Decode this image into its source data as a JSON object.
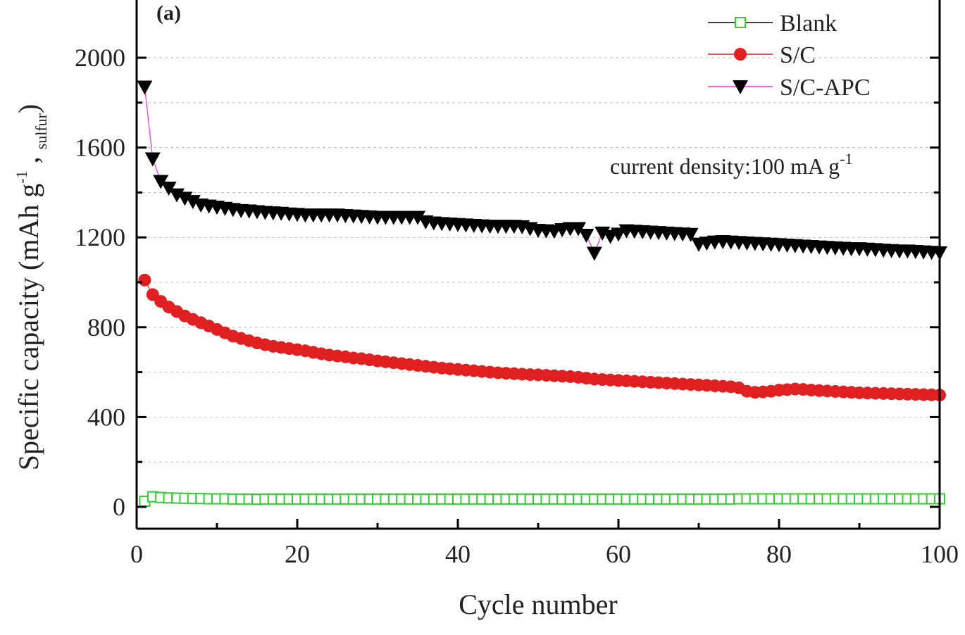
{
  "chart_data": {
    "type": "scatter",
    "panel_label": "(a)",
    "xlabel": "Cycle number",
    "ylabel": {
      "main": "Specific capacity (mAh g",
      "exp": "-1",
      "comma": " , ",
      "sub": "sulfur",
      "close": ")"
    },
    "annotation": {
      "main": "current density:100 mA g",
      "exp": "-1"
    },
    "xlim": [
      0,
      100
    ],
    "ylim": [
      -100,
      2200
    ],
    "xticks": [
      0,
      20,
      40,
      60,
      80,
      100
    ],
    "yticks": [
      0,
      400,
      800,
      1200,
      1600,
      2000
    ],
    "grid": true,
    "legend_position": "top-right",
    "x": [
      1,
      2,
      3,
      4,
      5,
      6,
      7,
      8,
      9,
      10,
      11,
      12,
      13,
      14,
      15,
      16,
      17,
      18,
      19,
      20,
      21,
      22,
      23,
      24,
      25,
      26,
      27,
      28,
      29,
      30,
      31,
      32,
      33,
      34,
      35,
      36,
      37,
      38,
      39,
      40,
      41,
      42,
      43,
      44,
      45,
      46,
      47,
      48,
      49,
      50,
      51,
      52,
      53,
      54,
      55,
      56,
      57,
      58,
      59,
      60,
      61,
      62,
      63,
      64,
      65,
      66,
      67,
      68,
      69,
      70,
      71,
      72,
      73,
      74,
      75,
      76,
      77,
      78,
      79,
      80,
      81,
      82,
      83,
      84,
      85,
      86,
      87,
      88,
      89,
      90,
      91,
      92,
      93,
      94,
      95,
      96,
      97,
      98,
      99,
      100
    ],
    "series": [
      {
        "name": "Blank",
        "color": "#33cc33",
        "line_color": "#000000",
        "marker": "open-square",
        "values": [
          25,
          45,
          42,
          40,
          39,
          38,
          37,
          37,
          36,
          36,
          36,
          35,
          35,
          35,
          34,
          35,
          35,
          35,
          35,
          35,
          35,
          35,
          35,
          35,
          35,
          35,
          35,
          35,
          35,
          35,
          35,
          35,
          35,
          35,
          35,
          35,
          35,
          35,
          35,
          35,
          35,
          35,
          35,
          35,
          35,
          35,
          35,
          35,
          35,
          35,
          35,
          35,
          35,
          35,
          35,
          35,
          35,
          35,
          35,
          35,
          35,
          35,
          35,
          35,
          35,
          35,
          35,
          35,
          35,
          35,
          35,
          35,
          35,
          35,
          36,
          36,
          36,
          36,
          36,
          36,
          36,
          36,
          36,
          36,
          36,
          36,
          36,
          36,
          36,
          36,
          36,
          36,
          36,
          36,
          36,
          36,
          36,
          36,
          36,
          36
        ]
      },
      {
        "name": "S/C",
        "color": "#e02020",
        "line_color": "#e02020",
        "marker": "filled-circle",
        "values": [
          1010,
          945,
          915,
          890,
          870,
          850,
          835,
          820,
          805,
          790,
          775,
          760,
          750,
          740,
          730,
          722,
          715,
          710,
          705,
          700,
          695,
          688,
          682,
          676,
          672,
          668,
          663,
          660,
          655,
          650,
          646,
          642,
          638,
          634,
          630,
          626,
          622,
          618,
          615,
          612,
          609,
          606,
          603,
          600,
          597,
          595,
          593,
          591,
          589,
          588,
          586,
          584,
          582,
          580,
          577,
          573,
          569,
          567,
          565,
          563,
          561,
          559,
          557,
          555,
          553,
          551,
          549,
          547,
          545,
          543,
          541,
          539,
          537,
          535,
          530,
          515,
          510,
          512,
          515,
          520,
          522,
          525,
          523,
          520,
          518,
          516,
          514,
          512,
          510,
          508,
          507,
          506,
          505,
          504,
          503,
          502,
          501,
          500,
          499,
          498
        ]
      },
      {
        "name": "S/C-APC",
        "color": "#000000",
        "line_color": "#ee33ee",
        "marker": "filled-triangle-down",
        "values": [
          1870,
          1550,
          1450,
          1420,
          1390,
          1375,
          1360,
          1345,
          1340,
          1335,
          1330,
          1325,
          1320,
          1318,
          1315,
          1312,
          1310,
          1308,
          1305,
          1303,
          1300,
          1300,
          1300,
          1300,
          1300,
          1298,
          1296,
          1294,
          1292,
          1290,
          1290,
          1290,
          1290,
          1290,
          1290,
          1270,
          1265,
          1262,
          1260,
          1258,
          1256,
          1254,
          1252,
          1250,
          1250,
          1250,
          1250,
          1248,
          1240,
          1232,
          1230,
          1228,
          1235,
          1240,
          1240,
          1210,
          1130,
          1220,
          1205,
          1215,
          1230,
          1228,
          1226,
          1224,
          1222,
          1220,
          1218,
          1216,
          1214,
          1170,
          1175,
          1180,
          1182,
          1180,
          1178,
          1176,
          1174,
          1172,
          1170,
          1168,
          1166,
          1164,
          1162,
          1160,
          1158,
          1156,
          1154,
          1152,
          1150,
          1150,
          1148,
          1146,
          1144,
          1142,
          1140,
          1140,
          1138,
          1136,
          1134,
          1132
        ]
      }
    ]
  }
}
